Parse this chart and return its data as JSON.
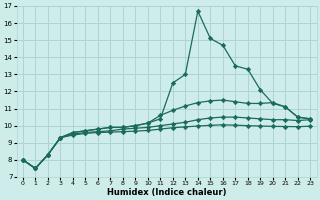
{
  "xlabel": "Humidex (Indice chaleur)",
  "bg_color": "#ceecea",
  "grid_color": "#aed4d0",
  "line_color": "#1a6b5a",
  "xlim": [
    -0.5,
    23.5
  ],
  "ylim": [
    7,
    17
  ],
  "xticks": [
    0,
    1,
    2,
    3,
    4,
    5,
    6,
    7,
    8,
    9,
    10,
    11,
    12,
    13,
    14,
    15,
    16,
    17,
    18,
    19,
    20,
    21,
    22,
    23
  ],
  "yticks": [
    7,
    8,
    9,
    10,
    11,
    12,
    13,
    14,
    15,
    16,
    17
  ],
  "series": [
    {
      "x": [
        0,
        1,
        2,
        3,
        4,
        5,
        6,
        7,
        8,
        9,
        10,
        11,
        12,
        13,
        14,
        15,
        16,
        17,
        18,
        19,
        20,
        21,
        22,
        23
      ],
      "y": [
        8.0,
        7.5,
        8.3,
        9.3,
        9.6,
        9.7,
        9.8,
        9.9,
        9.9,
        10.0,
        10.15,
        10.4,
        12.5,
        13.0,
        16.7,
        15.1,
        14.7,
        13.5,
        13.3,
        12.1,
        11.3,
        11.1,
        10.5,
        10.4
      ]
    },
    {
      "x": [
        0,
        1,
        2,
        3,
        4,
        5,
        6,
        7,
        8,
        9,
        10,
        11,
        12,
        13,
        14,
        15,
        16,
        17,
        18,
        19,
        20,
        21,
        22,
        23
      ],
      "y": [
        8.0,
        7.5,
        8.3,
        9.3,
        9.6,
        9.7,
        9.8,
        9.9,
        9.9,
        10.0,
        10.15,
        10.6,
        10.9,
        11.15,
        11.35,
        11.45,
        11.5,
        11.4,
        11.3,
        11.3,
        11.35,
        11.1,
        10.5,
        10.4
      ]
    },
    {
      "x": [
        0,
        1,
        2,
        3,
        4,
        5,
        6,
        7,
        8,
        9,
        10,
        11,
        12,
        13,
        14,
        15,
        16,
        17,
        18,
        19,
        20,
        21,
        22,
        23
      ],
      "y": [
        8.0,
        7.5,
        8.3,
        9.3,
        9.5,
        9.6,
        9.65,
        9.7,
        9.8,
        9.85,
        9.9,
        10.0,
        10.1,
        10.2,
        10.35,
        10.45,
        10.5,
        10.5,
        10.45,
        10.4,
        10.35,
        10.35,
        10.3,
        10.35
      ]
    },
    {
      "x": [
        0,
        1,
        2,
        3,
        4,
        5,
        6,
        7,
        8,
        9,
        10,
        11,
        12,
        13,
        14,
        15,
        16,
        17,
        18,
        19,
        20,
        21,
        22,
        23
      ],
      "y": [
        8.0,
        7.5,
        8.3,
        9.3,
        9.45,
        9.55,
        9.6,
        9.62,
        9.65,
        9.68,
        9.72,
        9.8,
        9.88,
        9.93,
        9.98,
        10.02,
        10.05,
        10.03,
        10.0,
        9.98,
        9.96,
        9.95,
        9.94,
        9.97
      ]
    }
  ]
}
